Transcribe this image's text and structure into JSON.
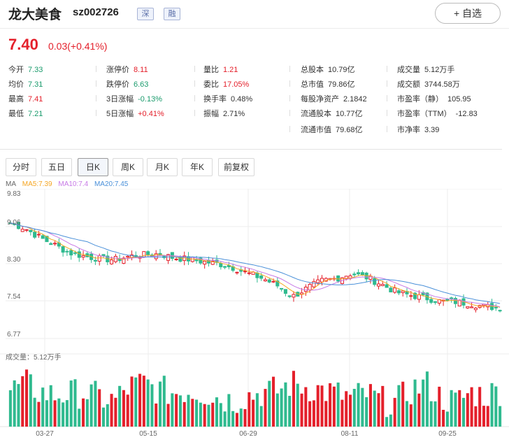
{
  "header": {
    "name": "龙大美食",
    "code": "sz002726",
    "tags": [
      "深",
      "融"
    ],
    "favorite_label": "+ 自选"
  },
  "quote": {
    "price": "7.40",
    "change": "0.03(+0.41%)"
  },
  "stats": [
    {
      "label": "今开",
      "value": "7.33",
      "color": "green"
    },
    {
      "label": "均价",
      "value": "7.31",
      "color": "green"
    },
    {
      "label": "最高",
      "value": "7.41",
      "color": "red"
    },
    {
      "label": "最低",
      "value": "7.21",
      "color": "green"
    },
    {
      "label": "涨停价",
      "value": "8.11",
      "color": "red"
    },
    {
      "label": "跌停价",
      "value": "6.63",
      "color": "green"
    },
    {
      "label": "3日涨幅",
      "value": "-0.13%",
      "color": "green"
    },
    {
      "label": "5日涨幅",
      "value": "+0.41%",
      "color": "red"
    },
    {
      "label": "量比",
      "value": "1.21",
      "color": "red"
    },
    {
      "label": "委比",
      "value": "17.05%",
      "color": "red"
    },
    {
      "label": "换手率",
      "value": "0.48%",
      "color": "dark"
    },
    {
      "label": "振幅",
      "value": "2.71%",
      "color": "dark"
    },
    {
      "label": "总股本",
      "value": "10.79亿",
      "color": "dark"
    },
    {
      "label": "总市值",
      "value": "79.86亿",
      "color": "dark"
    },
    {
      "label": "每股净资产",
      "value": "2.1842",
      "color": "dark"
    },
    {
      "label": "流通股本",
      "value": "10.77亿",
      "color": "dark"
    },
    {
      "label": "流通市值",
      "value": "79.68亿",
      "color": "dark"
    },
    {
      "label": "成交量",
      "value": "5.12万手",
      "color": "dark"
    },
    {
      "label": "成交额",
      "value": "3744.58万",
      "color": "dark"
    },
    {
      "label": "市盈率（静）",
      "value": "105.95",
      "color": "dark"
    },
    {
      "label": "市盈率（TTM）",
      "value": "-12.83",
      "color": "dark"
    },
    {
      "label": "市净率",
      "value": "3.39",
      "color": "dark"
    }
  ],
  "tabs": [
    "分时",
    "五日",
    "日K",
    "周K",
    "月K",
    "年K",
    "前复权"
  ],
  "active_tab": "日K",
  "ma_legend": [
    {
      "label": "MA",
      "color": "#666666"
    },
    {
      "label": "MA5:7.39",
      "color": "#f5a623"
    },
    {
      "label": "MA10:7.4",
      "color": "#c77ae6"
    },
    {
      "label": "MA20:7.45",
      "color": "#4a90d9"
    }
  ],
  "volume_label": "成交量：5.12万手",
  "colors": {
    "up": "#e4202b",
    "down": "#2fba8f"
  },
  "chart_data": {
    "type": "candlestick",
    "y_ticks": [
      "9.83",
      "9.06",
      "8.30",
      "7.54",
      "6.77"
    ],
    "y_range": [
      6.77,
      9.83
    ],
    "x_labels": [
      "03-27",
      "05-15",
      "06-29",
      "08-11",
      "09-25"
    ],
    "anchors": [
      [
        9.12,
        9.13
      ],
      [
        9.06,
        9.02
      ],
      [
        8.88,
        8.83
      ],
      [
        8.72,
        8.68
      ],
      [
        8.55,
        8.52
      ],
      [
        8.47,
        8.45
      ],
      [
        8.38,
        8.4
      ],
      [
        8.37,
        8.38
      ],
      [
        8.47,
        8.45
      ],
      [
        8.5,
        8.48
      ],
      [
        8.52,
        8.5
      ],
      [
        8.43,
        8.42
      ],
      [
        8.38,
        8.39
      ],
      [
        8.36,
        8.34
      ],
      [
        8.32,
        8.3
      ],
      [
        8.25,
        8.22
      ],
      [
        8.12,
        8.1
      ],
      [
        8.02,
        8.0
      ],
      [
        7.9,
        7.85
      ],
      [
        7.68,
        7.62
      ],
      [
        7.82,
        7.8
      ],
      [
        7.96,
        7.95
      ],
      [
        8.02,
        8.0
      ],
      [
        8.08,
        8.1
      ],
      [
        8.06,
        8.02
      ],
      [
        7.9,
        7.88
      ],
      [
        7.76,
        7.72
      ],
      [
        7.67,
        7.65
      ],
      [
        7.62,
        7.6
      ],
      [
        7.55,
        7.53
      ],
      [
        7.52,
        7.52
      ],
      [
        7.5,
        7.48
      ],
      [
        7.45,
        7.42
      ],
      [
        7.42,
        7.4
      ]
    ],
    "volume_anchors": [
      0.45,
      0.55,
      0.42,
      0.38,
      0.4,
      0.42,
      0.35,
      0.3,
      0.5,
      0.55,
      0.45,
      0.42,
      0.45,
      0.42,
      0.35,
      0.3,
      0.38,
      0.42,
      0.45,
      0.55,
      0.5,
      0.45,
      0.4,
      0.35,
      0.4,
      0.3,
      0.28,
      0.45,
      0.55,
      0.35,
      0.28,
      0.42,
      0.38,
      0.45
    ]
  }
}
